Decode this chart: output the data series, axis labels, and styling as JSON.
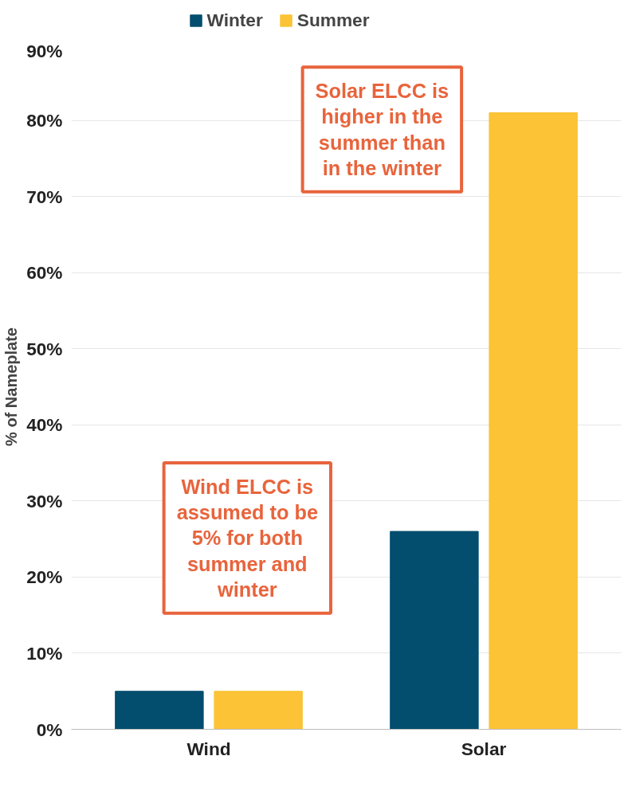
{
  "chart_data": {
    "type": "bar",
    "categories": [
      "Wind",
      "Solar"
    ],
    "ylabel": "% of Nameplate",
    "series": [
      {
        "name": "Winter",
        "color": "#034e6e",
        "values": [
          5,
          26
        ]
      },
      {
        "name": "Summer",
        "color": "#fbc335",
        "values": [
          5,
          81
        ]
      }
    ],
    "ylim": [
      0,
      90
    ],
    "yticks": [
      {
        "value": 0,
        "label": "0%"
      },
      {
        "value": 10,
        "label": "10%"
      },
      {
        "value": 20,
        "label": "20%"
      },
      {
        "value": 30,
        "label": "30%"
      },
      {
        "value": 40,
        "label": "40%"
      },
      {
        "value": 50,
        "label": "50%"
      },
      {
        "value": 60,
        "label": "60%"
      },
      {
        "value": 70,
        "label": "70%"
      },
      {
        "value": 80,
        "label": "80%"
      },
      {
        "value": 90,
        "label": "90%"
      }
    ],
    "grid": "y",
    "legend": "top",
    "annotations": [
      "Solar ELCC is higher in the summer than in the winter",
      "Wind ELCC is assumed to be 5% for both summer and winter"
    ]
  }
}
